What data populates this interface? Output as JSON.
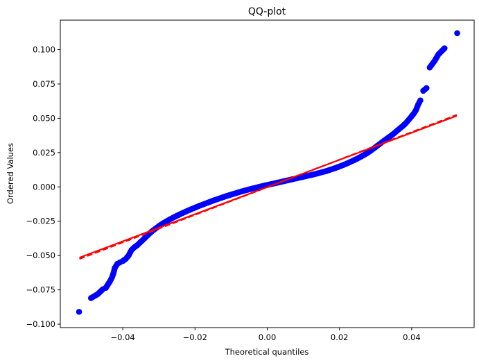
{
  "chart_data": {
    "type": "scatter",
    "title": "QQ-plot",
    "xlabel": "Theoretical quantiles",
    "ylabel": "Ordered Values",
    "xlim": [
      -0.0573,
      0.0573
    ],
    "ylim": [
      -0.1025,
      0.1215
    ],
    "xticks": [
      -0.04,
      -0.02,
      0.0,
      0.02,
      0.04
    ],
    "xtick_labels": [
      "−0.04",
      "−0.02",
      "0.00",
      "0.02",
      "0.04"
    ],
    "yticks": [
      -0.1,
      -0.075,
      -0.05,
      -0.025,
      0.0,
      0.025,
      0.05,
      0.075,
      0.1
    ],
    "ytick_labels": [
      "−0.100",
      "−0.075",
      "−0.050",
      "−0.025",
      "0.000",
      "0.025",
      "0.050",
      "0.075",
      "0.100"
    ],
    "grid": false,
    "legend": "none",
    "series": [
      {
        "color": "#0000ff",
        "marker": "circle",
        "x": [
          -0.0521,
          -0.0488,
          -0.0469,
          -0.0455,
          -0.0447,
          -0.0436,
          -0.043,
          -0.0426,
          -0.0422,
          -0.0415,
          -0.0408,
          -0.04,
          -0.0392,
          -0.0384,
          -0.0376,
          -0.0368,
          -0.036,
          -0.0352,
          -0.0344,
          -0.0336,
          -0.0328,
          -0.032,
          -0.031,
          -0.03,
          -0.029,
          -0.028,
          -0.027,
          -0.026,
          -0.025,
          -0.024,
          -0.023,
          -0.022,
          -0.021,
          -0.02,
          -0.019,
          -0.018,
          -0.017,
          -0.016,
          -0.015,
          -0.014,
          -0.013,
          -0.012,
          -0.011,
          -0.01,
          -0.009,
          -0.008,
          -0.007,
          -0.006,
          -0.005,
          -0.004,
          -0.003,
          -0.002,
          -0.001,
          0.0,
          0.001,
          0.002,
          0.003,
          0.004,
          0.005,
          0.006,
          0.007,
          0.008,
          0.009,
          0.01,
          0.011,
          0.012,
          0.013,
          0.014,
          0.015,
          0.016,
          0.017,
          0.018,
          0.019,
          0.02,
          0.021,
          0.022,
          0.023,
          0.024,
          0.025,
          0.026,
          0.027,
          0.028,
          0.029,
          0.03,
          0.031,
          0.032,
          0.0328,
          0.0336,
          0.0344,
          0.0352,
          0.036,
          0.0368,
          0.0376,
          0.0384,
          0.0392,
          0.04,
          0.0406,
          0.0412,
          0.0418,
          0.0424,
          0.0432,
          0.0441,
          0.045,
          0.0464,
          0.0474,
          0.0491,
          0.0526
        ],
        "y": [
          -0.091,
          -0.081,
          -0.078,
          -0.0745,
          -0.0735,
          -0.069,
          -0.066,
          -0.063,
          -0.059,
          -0.056,
          -0.055,
          -0.054,
          -0.0525,
          -0.05,
          -0.046,
          -0.044,
          -0.0425,
          -0.0405,
          -0.0385,
          -0.0365,
          -0.0345,
          -0.0325,
          -0.0305,
          -0.0285,
          -0.0268,
          -0.0252,
          -0.0237,
          -0.0223,
          -0.021,
          -0.0197,
          -0.0185,
          -0.0173,
          -0.0162,
          -0.0151,
          -0.014,
          -0.013,
          -0.012,
          -0.011,
          -0.01,
          -0.0091,
          -0.0082,
          -0.0073,
          -0.0064,
          -0.0056,
          -0.0048,
          -0.004,
          -0.0032,
          -0.0025,
          -0.0018,
          -0.0011,
          -0.0005,
          0.0002,
          0.0008,
          0.0014,
          0.002,
          0.0026,
          0.0032,
          0.0038,
          0.0044,
          0.005,
          0.0056,
          0.0062,
          0.0068,
          0.0074,
          0.008,
          0.0086,
          0.0092,
          0.0099,
          0.0106,
          0.0113,
          0.0121,
          0.013,
          0.0139,
          0.0149,
          0.0159,
          0.017,
          0.0182,
          0.0194,
          0.0207,
          0.0221,
          0.0236,
          0.0252,
          0.027,
          0.029,
          0.031,
          0.033,
          0.0345,
          0.036,
          0.0375,
          0.0392,
          0.041,
          0.0428,
          0.0445,
          0.0465,
          0.049,
          0.0515,
          0.0535,
          0.056,
          0.06,
          0.063,
          0.07,
          0.072,
          0.087,
          0.092,
          0.0965,
          0.101,
          0.112
        ]
      }
    ],
    "fit_lines": [
      {
        "color": "#ff0000",
        "style": "solid",
        "x": [
          -0.052,
          0.0525
        ],
        "y": [
          -0.0515,
          0.0518
        ]
      },
      {
        "color": "#ff0000",
        "style": "dashed",
        "x": [
          -0.052,
          0.0525
        ],
        "y": [
          -0.0525,
          0.0525
        ]
      }
    ]
  }
}
